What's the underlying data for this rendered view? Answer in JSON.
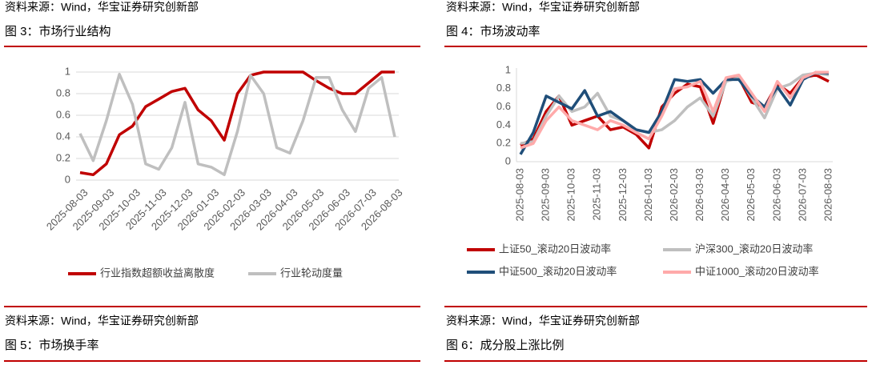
{
  "header_sources": [
    "资料来源：Wind，华宝证券研究创新部",
    "资料来源：Wind，华宝证券研究创新部"
  ],
  "chart_data": [
    {
      "type": "line",
      "title": "图 3：市场行业结构",
      "categories": [
        "2025-08-03",
        null,
        "2025-09-03",
        null,
        "2025-10-03",
        null,
        "2025-11-03",
        null,
        "2025-12-03",
        null,
        "2026-01-03",
        null,
        "2026-02-03",
        null,
        "2026-03-03",
        null,
        "2026-04-03",
        null,
        "2026-05-03",
        null,
        "2026-06-03",
        null,
        "2026-07-03",
        null,
        "2026-08-03"
      ],
      "series": [
        {
          "name": "行业指数超额收益离散度",
          "color": "#c00000",
          "values": [
            0.07,
            0.05,
            0.15,
            0.42,
            0.5,
            0.68,
            0.75,
            0.82,
            0.85,
            0.65,
            0.55,
            0.37,
            0.8,
            0.97,
            1,
            1,
            1,
            1,
            0.92,
            0.85,
            0.8,
            0.8,
            0.9,
            1,
            1
          ]
        },
        {
          "name": "行业轮动度量",
          "color": "#bfbfbf",
          "values": [
            0.43,
            0.18,
            0.55,
            0.98,
            0.7,
            0.15,
            0.1,
            0.3,
            0.72,
            0.15,
            0.12,
            0.05,
            0.45,
            0.97,
            0.8,
            0.3,
            0.25,
            0.55,
            0.95,
            0.95,
            0.65,
            0.45,
            0.85,
            0.95,
            0.4
          ]
        }
      ],
      "ylim": [
        0,
        1
      ],
      "yticks": [
        0,
        0.2,
        0.4,
        0.6,
        0.8,
        1
      ],
      "grid": true
    },
    {
      "type": "line",
      "title": "图 4：市场波动率",
      "categories": [
        "2025-08-03",
        null,
        "2025-09-03",
        null,
        "2025-10-03",
        null,
        "2025-11-03",
        null,
        "2025-12-03",
        null,
        "2026-01-03",
        null,
        "2026-02-03",
        null,
        "2026-03-03",
        null,
        "2026-04-03",
        null,
        "2026-05-03",
        null,
        "2026-06-03",
        null,
        "2026-07-03",
        null,
        "2026-08-03"
      ],
      "series": [
        {
          "name": "上证50_滚动20日波动率",
          "color": "#c00000",
          "values": [
            0.18,
            0.25,
            0.55,
            0.72,
            0.4,
            0.45,
            0.5,
            0.35,
            0.38,
            0.3,
            0.15,
            0.6,
            0.75,
            0.85,
            0.82,
            0.42,
            0.9,
            0.92,
            0.65,
            0.6,
            0.85,
            0.75,
            0.92,
            0.95,
            0.88
          ]
        },
        {
          "name": "沪深300_滚动20日波动率",
          "color": "#bfbfbf",
          "values": [
            0.2,
            0.22,
            0.5,
            0.72,
            0.55,
            0.6,
            0.75,
            0.5,
            0.45,
            0.35,
            0.32,
            0.35,
            0.45,
            0.6,
            0.7,
            0.5,
            0.88,
            0.92,
            0.7,
            0.48,
            0.8,
            0.85,
            0.95,
            0.97,
            0.95
          ]
        },
        {
          "name": "中证500_滚动20日波动率",
          "color": "#1f4e79",
          "values": [
            0.08,
            0.32,
            0.72,
            0.65,
            0.58,
            0.78,
            0.5,
            0.55,
            0.45,
            0.35,
            0.32,
            0.55,
            0.9,
            0.88,
            0.9,
            0.75,
            0.9,
            0.9,
            0.72,
            0.6,
            0.82,
            0.62,
            0.9,
            0.98,
            0.97
          ]
        },
        {
          "name": "中证1000_滚动20日波动率",
          "color": "#ffaaaa",
          "values": [
            0.15,
            0.2,
            0.45,
            0.6,
            0.45,
            0.4,
            0.35,
            0.45,
            0.4,
            0.32,
            0.25,
            0.5,
            0.8,
            0.82,
            0.88,
            0.55,
            0.92,
            0.95,
            0.75,
            0.55,
            0.88,
            0.7,
            0.92,
            0.98,
            0.98
          ]
        }
      ],
      "ylim": [
        0,
        1
      ],
      "yticks": [
        0,
        0.2,
        0.4,
        0.6,
        0.8,
        1
      ],
      "grid": false
    }
  ],
  "footer": {
    "sources": [
      "资料来源：Wind，华宝证券研究创新部",
      "资料来源：Wind，华宝证券研究创新部"
    ],
    "captions": [
      "图 5：市场换手率",
      "图 6：成分股上涨比例"
    ]
  }
}
